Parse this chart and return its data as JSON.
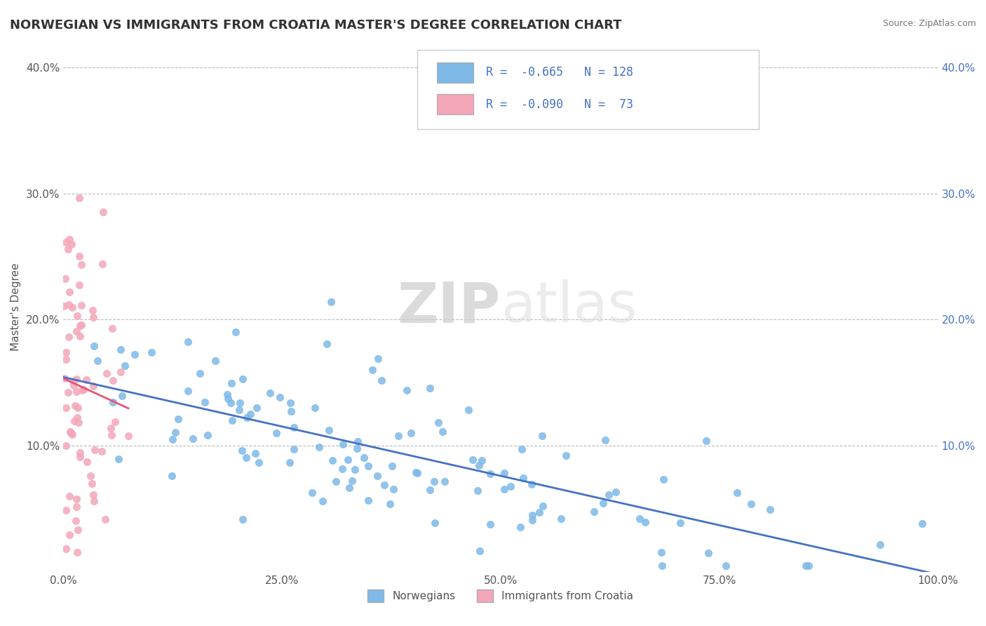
{
  "title": "NORWEGIAN VS IMMIGRANTS FROM CROATIA MASTER'S DEGREE CORRELATION CHART",
  "source": "Source: ZipAtlas.com",
  "ylabel": "Master's Degree",
  "xlim": [
    0.0,
    1.0
  ],
  "ylim": [
    0.0,
    0.42
  ],
  "yticks": [
    0.0,
    0.1,
    0.2,
    0.3,
    0.4
  ],
  "ytick_labels": [
    "",
    "10.0%",
    "20.0%",
    "30.0%",
    "40.0%"
  ],
  "xticks": [
    0.0,
    0.25,
    0.5,
    0.75,
    1.0
  ],
  "xtick_labels": [
    "0.0%",
    "25.0%",
    "50.0%",
    "75.0%",
    "100.0%"
  ],
  "legend_labels": [
    "Norwegians",
    "Immigrants from Croatia"
  ],
  "blue_color": "#7EB9E8",
  "pink_color": "#F4A7B9",
  "blue_line_color": "#4472C4",
  "pink_line_color": "#E8547A",
  "watermark_zip": "ZIP",
  "watermark_atlas": "atlas",
  "blue_R": -0.665,
  "blue_N": 128,
  "pink_R": -0.09,
  "pink_N": 73
}
